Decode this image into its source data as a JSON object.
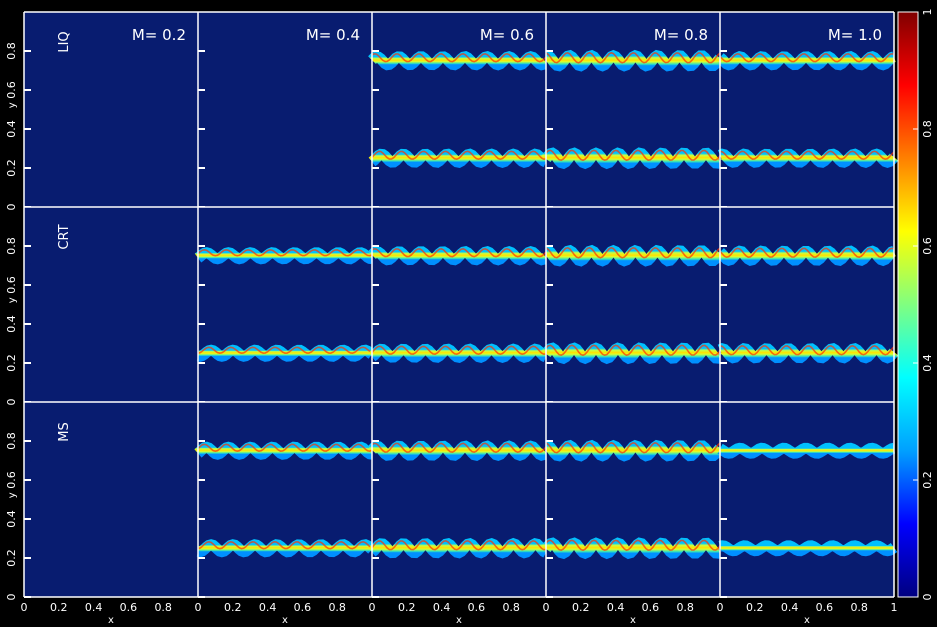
{
  "chart_data": {
    "type": "heatmap",
    "columns": [
      {
        "label": "M= 0.2",
        "mach": 0.2,
        "amp": 0.0
      },
      {
        "label": "M= 0.4",
        "mach": 0.4,
        "amp": 0.0
      },
      {
        "label": "M= 0.6",
        "mach": 0.6,
        "amp": 0.8
      },
      {
        "label": "M= 0.8",
        "mach": 0.8,
        "amp": 1.0
      },
      {
        "label": "M= 1.0",
        "mach": 1.0,
        "amp": 0.8
      }
    ],
    "rows": [
      {
        "label": "LIQ",
        "amps": [
          0.0,
          0.0,
          0.8,
          1.0,
          0.8
        ]
      },
      {
        "label": "CRT",
        "amps": [
          0.0,
          0.6,
          0.8,
          1.0,
          0.9
        ]
      },
      {
        "label": "MS",
        "amps": [
          0.0,
          0.7,
          0.9,
          1.0,
          0.5
        ]
      }
    ],
    "interfaces_y": [
      0.25,
      0.75
    ],
    "xlabel": "x",
    "ylabel": "y",
    "x_ticks": [
      "0",
      "0.2",
      "0.4",
      "0.6",
      "0.8",
      "1"
    ],
    "y_ticks": [
      "0",
      "0.2",
      "0.4",
      "0.6",
      "0.8"
    ],
    "xlim": [
      0,
      1
    ],
    "ylim": [
      0,
      1
    ],
    "colorbar": {
      "range": [
        0,
        1
      ],
      "ticks": [
        "0",
        "0.2",
        "0.4",
        "0.6",
        "0.8",
        "1"
      ],
      "colors": [
        "#000080",
        "#0000ff",
        "#00a0ff",
        "#00ffff",
        "#80ff80",
        "#ffff00",
        "#ff8000",
        "#ff0000",
        "#800000"
      ]
    },
    "background_color": "#081c70"
  }
}
